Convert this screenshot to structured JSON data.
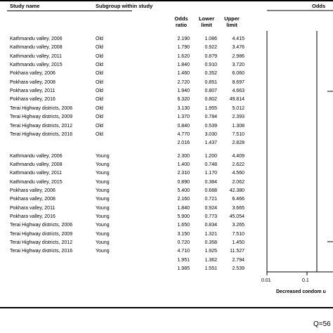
{
  "header": {
    "study_name": "Study name",
    "subgroup": "Subgroup within study",
    "odds_ratio": "Odds ratio",
    "lower_limit": "Lower limit",
    "upper_limit": "Upper limit",
    "right_partial": "Odds"
  },
  "chart_data": {
    "type": "table",
    "title": "",
    "columns": [
      "Study name",
      "Subgroup within study",
      "Odds ratio",
      "Lower limit",
      "Upper limit"
    ],
    "rows": [
      {
        "study": "Kathmandu valley, 2006",
        "subgroup": "Old",
        "or": "2.190",
        "lower": "1.086",
        "upper": "4.415"
      },
      {
        "study": "Kathmandu valley, 2008",
        "subgroup": "Old",
        "or": "1.790",
        "lower": "0.922",
        "upper": "3.476"
      },
      {
        "study": "Kathmandu valley, 2011",
        "subgroup": "Old",
        "or": "1.620",
        "lower": "0.879",
        "upper": "2.986"
      },
      {
        "study": "Kathmandu valley, 2015",
        "subgroup": "Old",
        "or": "1.840",
        "lower": "0.910",
        "upper": "3.720"
      },
      {
        "study": "Pokhara valley, 2006",
        "subgroup": "Old",
        "or": "1.460",
        "lower": "0.352",
        "upper": "6.060"
      },
      {
        "study": "Pokhara valley, 2008",
        "subgroup": "Old",
        "or": "2.720",
        "lower": "0.851",
        "upper": "8.697"
      },
      {
        "study": "Pokhara valley, 2011",
        "subgroup": "Old",
        "or": "1.940",
        "lower": "0.807",
        "upper": "4.663"
      },
      {
        "study": "Pokhara valley, 2016",
        "subgroup": "Old",
        "or": "6.320",
        "lower": "0.802",
        "upper": "49.814"
      },
      {
        "study": "Terai Highway districts, 2006",
        "subgroup": "Old",
        "or": "3.130",
        "lower": "1.955",
        "upper": "5.012"
      },
      {
        "study": "Terai Highway districts, 2009",
        "subgroup": "Old",
        "or": "1.370",
        "lower": "0.784",
        "upper": "2.393"
      },
      {
        "study": "Terai Highway districts, 2012",
        "subgroup": "Old",
        "or": "0.840",
        "lower": "0.539",
        "upper": "1.308"
      },
      {
        "study": "Terai Highway districts, 2016",
        "subgroup": "Old",
        "or": "4.770",
        "lower": "3.030",
        "upper": "7.510"
      },
      {
        "study": "",
        "subgroup": "",
        "or": "2.016",
        "lower": "1.437",
        "upper": "2.828"
      },
      {
        "study": "Kathmandu valley, 2006",
        "subgroup": "Young",
        "or": "2.300",
        "lower": "1.200",
        "upper": "4.409"
      },
      {
        "study": "Kathmandu valley, 2008",
        "subgroup": "Young",
        "or": "1.400",
        "lower": "0.748",
        "upper": "2.622"
      },
      {
        "study": "Kathmandu valley, 2011",
        "subgroup": "Young",
        "or": "2.310",
        "lower": "1.170",
        "upper": "4.560"
      },
      {
        "study": "Kathmandu valley, 2015",
        "subgroup": "Young",
        "or": "0.890",
        "lower": "0.384",
        "upper": "2.062"
      },
      {
        "study": "Pokhara valley, 2006",
        "subgroup": "Young",
        "or": "5.400",
        "lower": "0.688",
        "upper": "42.380"
      },
      {
        "study": "Pokhara valley, 2008",
        "subgroup": "Young",
        "or": "2.160",
        "lower": "0.721",
        "upper": "6.466"
      },
      {
        "study": "Pokhara valley, 2011",
        "subgroup": "Young",
        "or": "1.840",
        "lower": "0.924",
        "upper": "3.665"
      },
      {
        "study": "Pokhara valley, 2016",
        "subgroup": "Young",
        "or": "5.900",
        "lower": "0.773",
        "upper": "45.054"
      },
      {
        "study": "Terai Highway districts, 2006",
        "subgroup": "Young",
        "or": "1.650",
        "lower": "0.834",
        "upper": "3.265"
      },
      {
        "study": "Terai Highway districts, 2009",
        "subgroup": "Young",
        "or": "3.150",
        "lower": "1.321",
        "upper": "7.510"
      },
      {
        "study": "Terai Highway districts, 2012",
        "subgroup": "Young",
        "or": "0.720",
        "lower": "0.358",
        "upper": "1.450"
      },
      {
        "study": "Terai Highway districts, 2016",
        "subgroup": "Young",
        "or": "4.710",
        "lower": "1.925",
        "upper": "11.527"
      },
      {
        "study": "",
        "subgroup": "",
        "or": "1.951",
        "lower": "1.362",
        "upper": "2.794"
      },
      {
        "study": "",
        "subgroup": "",
        "or": "1.985",
        "lower": "1.551",
        "upper": "2.539"
      }
    ],
    "forest_axis": {
      "scale": "log",
      "ticks": [
        "0.01",
        "0.1"
      ],
      "tick_values": [
        0.01,
        0.1
      ]
    },
    "axis_note": "Decreased condom u",
    "q_stat": "Q=56"
  }
}
